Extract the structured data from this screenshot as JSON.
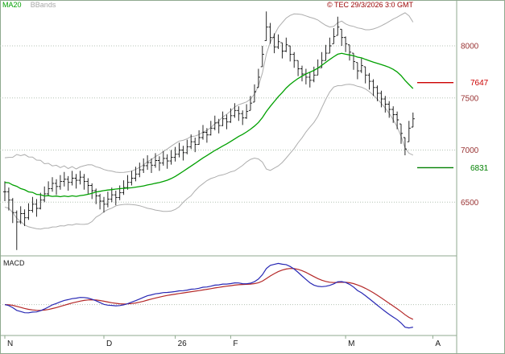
{
  "header": {
    "legend": [
      {
        "label": "MA20",
        "color": "#00a000"
      },
      {
        "label": "BBands",
        "color": "#a8a8a8"
      }
    ],
    "copyright": "© TEC 29/3/2026 3:0 GMT"
  },
  "macd_panel": {
    "label": "MACD"
  },
  "colors": {
    "grid": "#b4c2b4",
    "frame": "#8fa98f",
    "bars": "#111111",
    "ma20": "#00a000",
    "bbands": "#adadad",
    "macd": "#2828b4",
    "signal": "#b42828",
    "axis_label": "#993333",
    "copyright": "#990000",
    "month_label": "#1a1a1a"
  },
  "chart_data": {
    "type": "candlestick",
    "style": "hlc-bars",
    "title": "",
    "ylim": [
      6000,
      8340
    ],
    "gridlines": [
      8000,
      7500,
      7000,
      6500
    ],
    "levels": [
      {
        "value": 7647,
        "label": "7647",
        "color": "#cc0000",
        "name": "resistance"
      },
      {
        "value": 6831,
        "label": "6831",
        "color": "#008000",
        "name": "support"
      }
    ],
    "months": [
      {
        "label": "N",
        "index": 0
      },
      {
        "label": "D",
        "index": 25
      },
      {
        "label": "26",
        "index": 43
      },
      {
        "label": "F",
        "index": 57
      },
      {
        "label": "M",
        "index": 86
      },
      {
        "label": "A",
        "index": 108
      }
    ],
    "indicators": [
      {
        "name": "MA20",
        "type": "sma",
        "period": 20
      },
      {
        "name": "BBands",
        "type": "bollinger",
        "period": 20,
        "mult": 2
      },
      {
        "name": "MACD",
        "type": "macd",
        "fast": 12,
        "slow": 26,
        "signal": 9,
        "legend_position": "top-left"
      }
    ],
    "bars_hlc": [
      [
        6700,
        6510,
        6600
      ],
      [
        6640,
        6420,
        6520
      ],
      [
        6540,
        6300,
        6400
      ],
      [
        6420,
        6040,
        6310
      ],
      [
        6460,
        6290,
        6390
      ],
      [
        6430,
        6270,
        6350
      ],
      [
        6490,
        6330,
        6420
      ],
      [
        6550,
        6400,
        6480
      ],
      [
        6530,
        6360,
        6440
      ],
      [
        6590,
        6430,
        6520
      ],
      [
        6650,
        6500,
        6580
      ],
      [
        6700,
        6560,
        6630
      ],
      [
        6740,
        6600,
        6680
      ],
      [
        6720,
        6570,
        6650
      ],
      [
        6760,
        6620,
        6700
      ],
      [
        6790,
        6650,
        6720
      ],
      [
        6750,
        6610,
        6690
      ],
      [
        6800,
        6660,
        6730
      ],
      [
        6770,
        6630,
        6710
      ],
      [
        6800,
        6670,
        6740
      ],
      [
        6770,
        6620,
        6700
      ],
      [
        6730,
        6580,
        6660
      ],
      [
        6680,
        6530,
        6610
      ],
      [
        6630,
        6480,
        6560
      ],
      [
        6580,
        6430,
        6510
      ],
      [
        6550,
        6400,
        6480
      ],
      [
        6600,
        6450,
        6530
      ],
      [
        6640,
        6500,
        6570
      ],
      [
        6610,
        6470,
        6545
      ],
      [
        6660,
        6520,
        6590
      ],
      [
        6710,
        6570,
        6640
      ],
      [
        6760,
        6620,
        6690
      ],
      [
        6800,
        6660,
        6730
      ],
      [
        6840,
        6700,
        6770
      ],
      [
        6880,
        6740,
        6810
      ],
      [
        6920,
        6780,
        6850
      ],
      [
        6950,
        6810,
        6880
      ],
      [
        6920,
        6780,
        6855
      ],
      [
        6970,
        6830,
        6900
      ],
      [
        6940,
        6800,
        6875
      ],
      [
        6990,
        6850,
        6920
      ],
      [
        6960,
        6820,
        6895
      ],
      [
        7000,
        6860,
        6930
      ],
      [
        7030,
        6890,
        6960
      ],
      [
        7070,
        6930,
        7000
      ],
      [
        7040,
        6900,
        6975
      ],
      [
        7100,
        6960,
        7030
      ],
      [
        7150,
        7010,
        7080
      ],
      [
        7120,
        6980,
        7055
      ],
      [
        7190,
        7050,
        7120
      ],
      [
        7240,
        7100,
        7170
      ],
      [
        7210,
        7070,
        7145
      ],
      [
        7280,
        7140,
        7210
      ],
      [
        7330,
        7190,
        7260
      ],
      [
        7300,
        7160,
        7235
      ],
      [
        7370,
        7230,
        7300
      ],
      [
        7340,
        7200,
        7270
      ],
      [
        7400,
        7260,
        7330
      ],
      [
        7450,
        7310,
        7380
      ],
      [
        7420,
        7280,
        7350
      ],
      [
        7380,
        7240,
        7310
      ],
      [
        7440,
        7300,
        7370
      ],
      [
        7520,
        7380,
        7450
      ],
      [
        7630,
        7460,
        7560
      ],
      [
        7780,
        7600,
        7700
      ],
      [
        8000,
        7800,
        7920
      ],
      [
        8330,
        8050,
        8180
      ],
      [
        8220,
        8020,
        8080
      ],
      [
        8120,
        7930,
        7990
      ],
      [
        8110,
        7970,
        8040
      ],
      [
        8030,
        7880,
        7950
      ],
      [
        8080,
        7940,
        8010
      ],
      [
        8000,
        7850,
        7920
      ],
      [
        7940,
        7790,
        7860
      ],
      [
        7860,
        7710,
        7780
      ],
      [
        7810,
        7660,
        7730
      ],
      [
        7780,
        7630,
        7700
      ],
      [
        7750,
        7600,
        7670
      ],
      [
        7800,
        7650,
        7720
      ],
      [
        7870,
        7720,
        7790
      ],
      [
        7940,
        7790,
        7860
      ],
      [
        8010,
        7860,
        7930
      ],
      [
        8080,
        7930,
        8000
      ],
      [
        8170,
        8020,
        8090
      ],
      [
        8280,
        8100,
        8180
      ],
      [
        8160,
        8000,
        8080
      ],
      [
        8090,
        7940,
        8020
      ],
      [
        8010,
        7860,
        7940
      ],
      [
        7930,
        7770,
        7850
      ],
      [
        7840,
        7680,
        7760
      ],
      [
        7880,
        7740,
        7810
      ],
      [
        7800,
        7640,
        7720
      ],
      [
        7740,
        7580,
        7660
      ],
      [
        7680,
        7520,
        7600
      ],
      [
        7620,
        7470,
        7545
      ],
      [
        7570,
        7410,
        7490
      ],
      [
        7520,
        7360,
        7440
      ],
      [
        7470,
        7310,
        7390
      ],
      [
        7420,
        7260,
        7340
      ],
      [
        7370,
        7200,
        7290
      ],
      [
        7250,
        7060,
        7160
      ],
      [
        7120,
        6950,
        7010
      ],
      [
        7280,
        7080,
        7210
      ],
      [
        7360,
        7220,
        7300
      ]
    ]
  }
}
